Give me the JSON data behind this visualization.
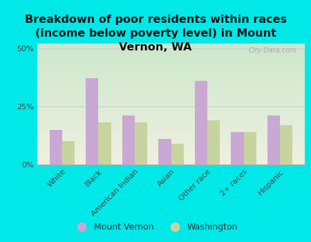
{
  "title": "Breakdown of poor residents within races\n(income below poverty level) in Mount\nVernon, WA",
  "categories": [
    "White",
    "Black",
    "American Indian",
    "Asian",
    "Other race",
    "2+ races",
    "Hispanic"
  ],
  "mount_vernon": [
    15,
    37,
    21,
    11,
    36,
    14,
    21
  ],
  "washington": [
    10,
    18,
    18,
    9,
    19,
    14,
    17
  ],
  "bar_color_mv": "#c9a8d4",
  "bar_color_wa": "#c8d4a0",
  "background_outer": "#00e8e8",
  "background_inner_top": "#cce8cc",
  "background_inner_bottom": "#f0f0e0",
  "ylim": [
    0,
    52
  ],
  "yticks": [
    0,
    25,
    50
  ],
  "ytick_labels": [
    "0%",
    "25%",
    "50%"
  ],
  "gridline_color": "#cccccc",
  "legend_mv": "Mount Vernon",
  "legend_wa": "Washington",
  "watermark": "City-Data.com",
  "title_fontsize": 11.5,
  "tick_fontsize": 8,
  "legend_fontsize": 9,
  "bar_width": 0.35
}
